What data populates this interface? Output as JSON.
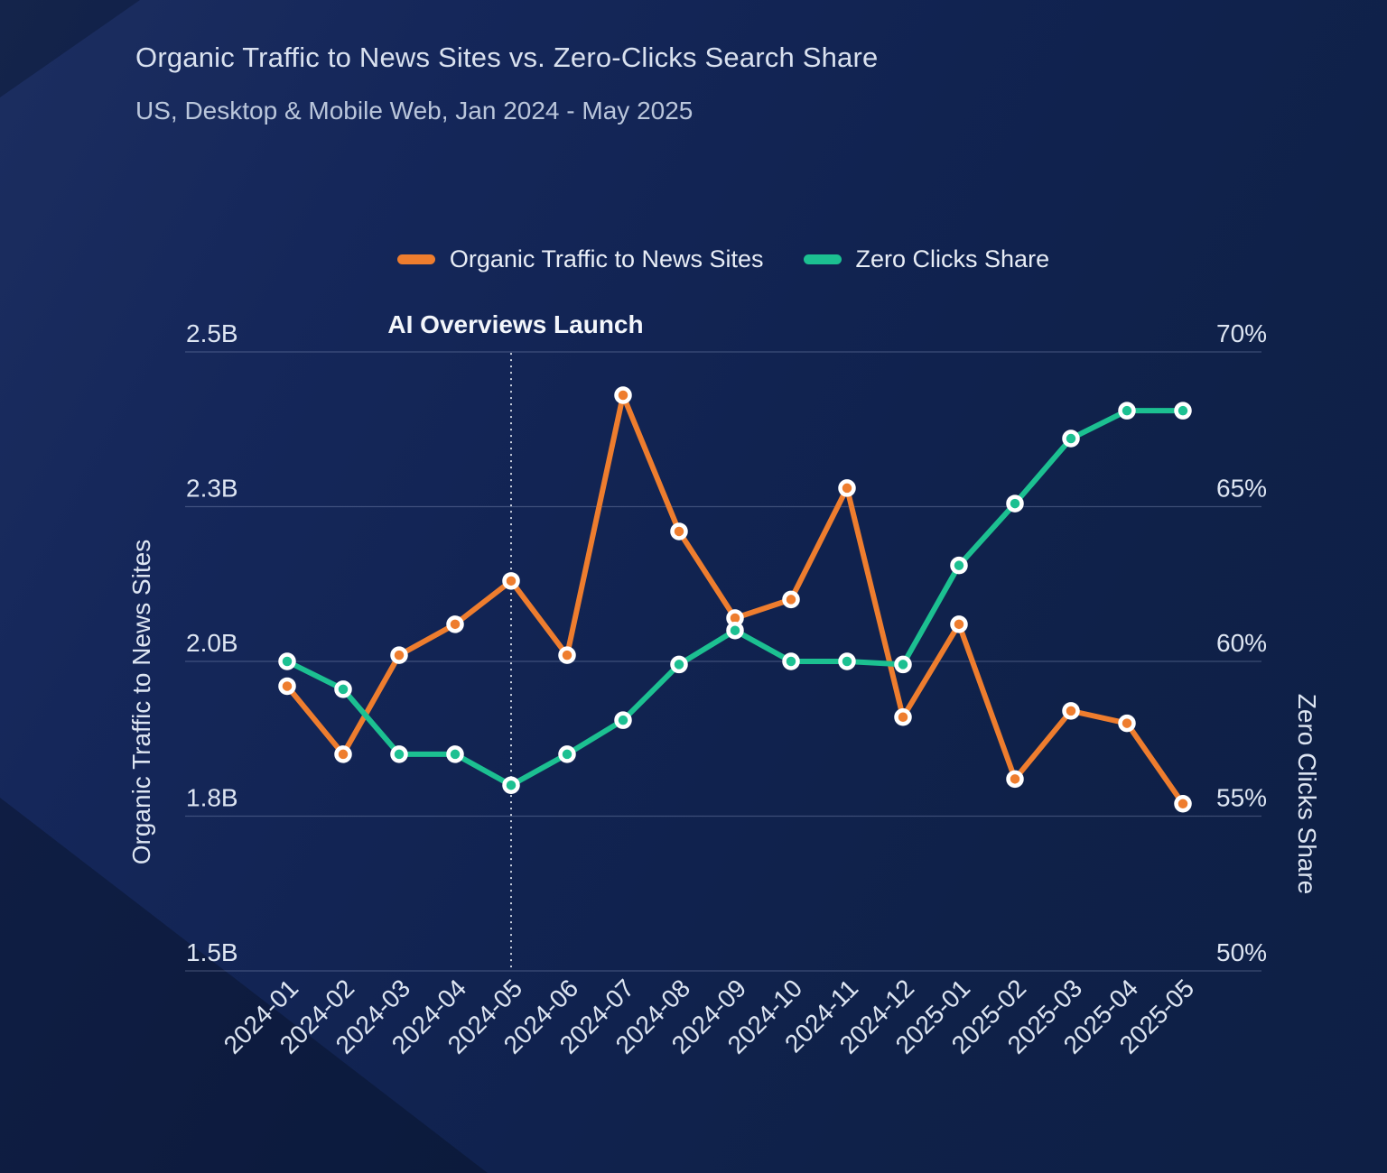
{
  "header": {
    "title": "Organic Traffic to News Sites vs. Zero-Clicks Search Share",
    "subtitle": "US, Desktop & Mobile Web, Jan 2024 - May 2025"
  },
  "colors": {
    "background_navy": "#112351",
    "background_dark_wedge": "#0a1a39",
    "organic_traffic_orange": "#ee7d2e",
    "zero_clicks_green": "#1cc091",
    "marker_ring": "#ffffff",
    "grid_line": "#a6b4d6",
    "text_primary": "#dde5f2",
    "text_muted": "#bac6db",
    "annotation_text": "#f3f6fb"
  },
  "chart_data": {
    "type": "line",
    "title": "Organic Traffic to News Sites vs. Zero-Clicks Search Share",
    "subtitle": "US, Desktop & Mobile Web, Jan 2024 - May 2025",
    "x": [
      "2024-01",
      "2024-02",
      "2024-03",
      "2024-04",
      "2024-05",
      "2024-06",
      "2024-07",
      "2024-08",
      "2024-09",
      "2024-10",
      "2024-11",
      "2024-12",
      "2025-01",
      "2025-02",
      "2025-03",
      "2025-04",
      "2025-05"
    ],
    "series": [
      {
        "name": "Organic Traffic to News Sites",
        "axis": "left",
        "color": "#ee7d2e",
        "unit": "billions of visits",
        "values": [
          1.96,
          1.85,
          2.01,
          2.06,
          2.13,
          2.01,
          2.43,
          2.21,
          2.07,
          2.1,
          2.28,
          1.91,
          2.06,
          1.81,
          1.92,
          1.9,
          1.77
        ]
      },
      {
        "name": "Zero Clicks Share",
        "axis": "right",
        "color": "#1cc091",
        "unit": "%",
        "values": [
          60.0,
          59.1,
          57.0,
          57.0,
          56.0,
          57.0,
          58.1,
          59.9,
          61.0,
          60.0,
          60.0,
          59.9,
          63.1,
          65.1,
          67.2,
          68.1,
          68.1
        ]
      }
    ],
    "left_axis": {
      "label": "Organic Traffic to News Sites",
      "ticks": [
        "2.5B",
        "2.3B",
        "2.0B",
        "1.8B",
        "1.5B"
      ],
      "tick_values": [
        2.5,
        2.25,
        2.0,
        1.75,
        1.5
      ],
      "range": [
        1.5,
        2.5
      ]
    },
    "right_axis": {
      "label": "Zero Clicks Share",
      "ticks": [
        "70%",
        "65%",
        "60%",
        "55%",
        "50%"
      ],
      "tick_values": [
        70,
        65,
        60,
        55,
        50
      ],
      "range": [
        50,
        70
      ]
    },
    "annotation": {
      "label": "AI Overviews Launch",
      "x": "2024-05"
    },
    "legend_position": "top-center",
    "grid": true
  }
}
